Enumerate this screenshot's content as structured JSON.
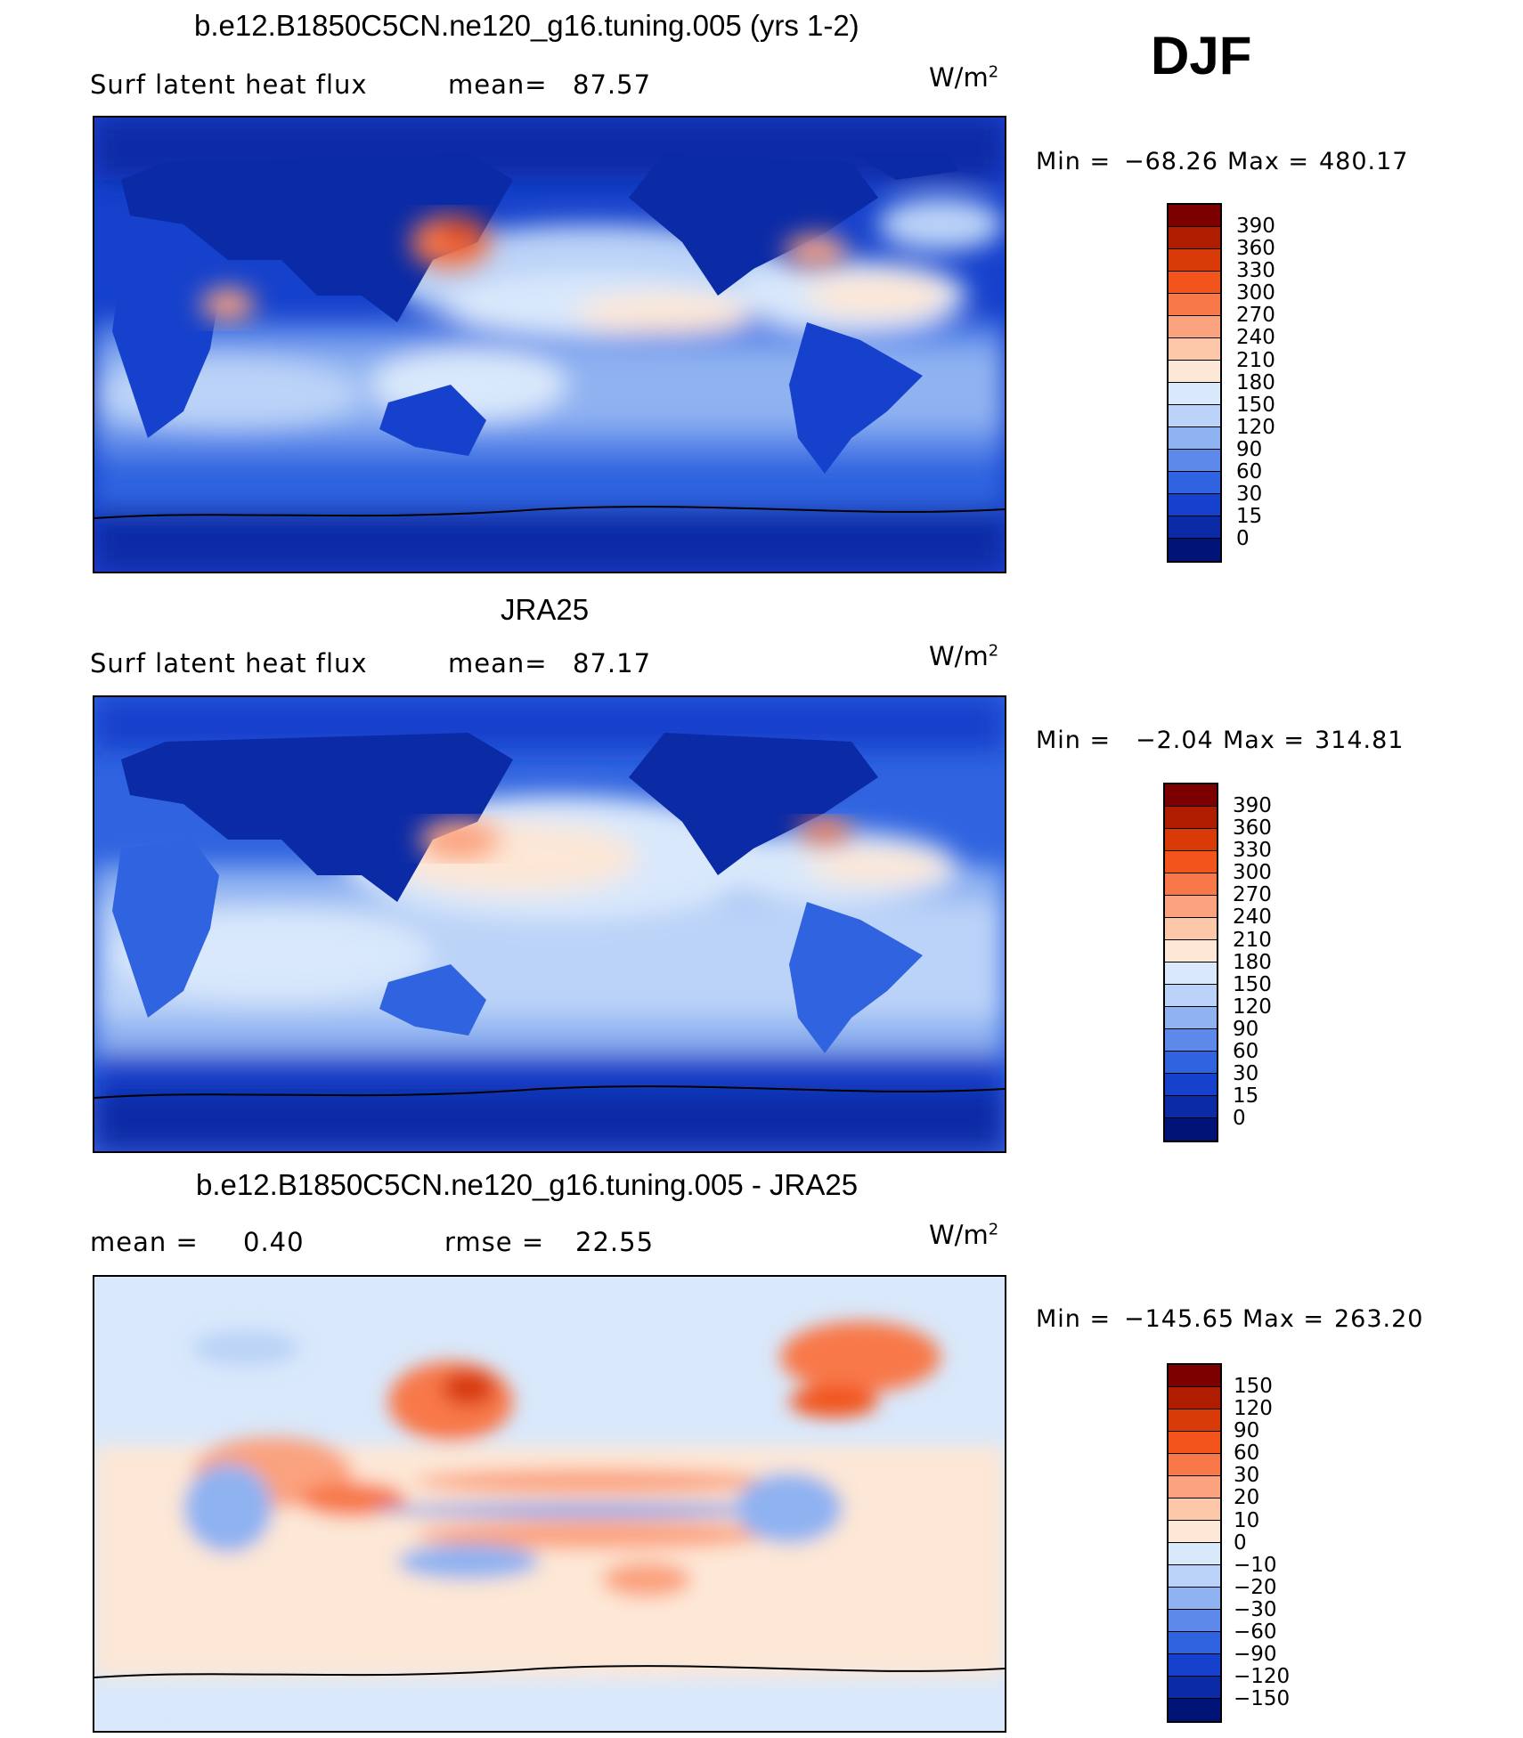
{
  "season": "DJF",
  "panels": [
    {
      "id": "model",
      "title": "b.e12.B1850C5CN.ne120_g16.tuning.005 (yrs 1-2)",
      "variable": "Surf latent heat flux",
      "stat1_label": "mean=",
      "stat1_value": "87.57",
      "units_base": "W/m",
      "units_exp": "2",
      "min_label": "Min =",
      "min_value": "−68.26",
      "max_label": "Max =",
      "max_value": "480.17"
    },
    {
      "id": "obs",
      "title": "JRA25",
      "variable": "Surf latent heat flux",
      "stat1_label": "mean=",
      "stat1_value": "87.17",
      "units_base": "W/m",
      "units_exp": "2",
      "min_label": "Min =",
      "min_value": "−2.04",
      "max_label": "Max =",
      "max_value": "314.81"
    },
    {
      "id": "diff",
      "title": "b.e12.B1850C5CN.ne120_g16.tuning.005 - JRA25",
      "stat1_label": "mean =",
      "stat1_value": "0.40",
      "stat2_label": "rmse =",
      "stat2_value": "22.55",
      "units_base": "W/m",
      "units_exp": "2",
      "min_label": "Min =",
      "min_value": "−145.65",
      "max_label": "Max =",
      "max_value": "263.20"
    }
  ],
  "colorbars": {
    "flux": {
      "labels": [
        "390",
        "360",
        "330",
        "300",
        "270",
        "240",
        "210",
        "180",
        "150",
        "120",
        "90",
        "60",
        "30",
        "15",
        "0"
      ],
      "colors": [
        "#7d0000",
        "#b01c00",
        "#d83a08",
        "#f2541c",
        "#f8784a",
        "#fba27e",
        "#fdc8aa",
        "#fde7d6",
        "#d9e8fb",
        "#bbd3f8",
        "#8fb2f1",
        "#5d8aea",
        "#2f63e0",
        "#1541cc",
        "#0a2aa6",
        "#001478"
      ]
    },
    "diff": {
      "labels": [
        "150",
        "120",
        "90",
        "60",
        "30",
        "20",
        "10",
        "0",
        "−10",
        "−20",
        "−30",
        "−60",
        "−90",
        "−120",
        "−150"
      ],
      "colors": [
        "#7d0000",
        "#b01c00",
        "#d83a08",
        "#f2541c",
        "#f8784a",
        "#fba27e",
        "#fdc8aa",
        "#fde7d6",
        "#d9e8fb",
        "#bbd3f8",
        "#8fb2f1",
        "#5d8aea",
        "#2f63e0",
        "#1541cc",
        "#0a2aa6",
        "#001478"
      ]
    }
  }
}
